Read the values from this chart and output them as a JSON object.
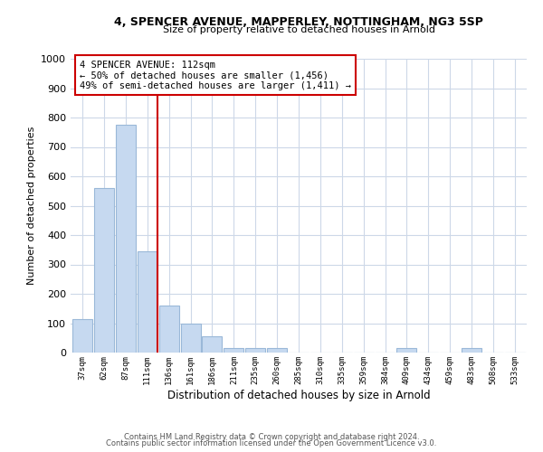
{
  "title1": "4, SPENCER AVENUE, MAPPERLEY, NOTTINGHAM, NG3 5SP",
  "title2": "Size of property relative to detached houses in Arnold",
  "xlabel": "Distribution of detached houses by size in Arnold",
  "ylabel": "Number of detached properties",
  "bar_labels": [
    "37sqm",
    "62sqm",
    "87sqm",
    "111sqm",
    "136sqm",
    "161sqm",
    "186sqm",
    "211sqm",
    "235sqm",
    "260sqm",
    "285sqm",
    "310sqm",
    "335sqm",
    "359sqm",
    "384sqm",
    "409sqm",
    "434sqm",
    "459sqm",
    "483sqm",
    "508sqm",
    "533sqm"
  ],
  "bar_values": [
    115,
    560,
    775,
    345,
    160,
    97,
    55,
    15,
    15,
    15,
    0,
    0,
    0,
    0,
    0,
    15,
    0,
    0,
    15,
    0,
    0
  ],
  "bar_color": "#c6d9f0",
  "bar_edge_color": "#9ab8d8",
  "vline_color": "#cc0000",
  "annotation_title": "4 SPENCER AVENUE: 112sqm",
  "annotation_line1": "← 50% of detached houses are smaller (1,456)",
  "annotation_line2": "49% of semi-detached houses are larger (1,411) →",
  "ylim": [
    0,
    1000
  ],
  "yticks": [
    0,
    100,
    200,
    300,
    400,
    500,
    600,
    700,
    800,
    900,
    1000
  ],
  "footer1": "Contains HM Land Registry data © Crown copyright and database right 2024.",
  "footer2": "Contains public sector information licensed under the Open Government Licence v3.0.",
  "bg_color": "#ffffff",
  "grid_color": "#cdd8e8"
}
